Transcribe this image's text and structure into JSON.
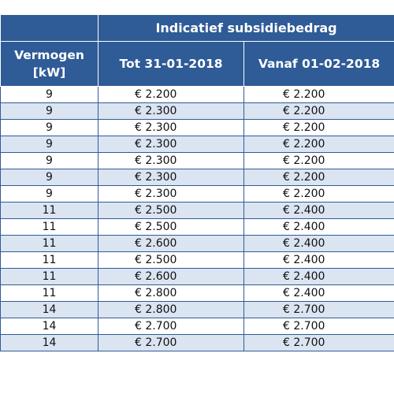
{
  "header": {
    "group_title": "Indicatief subsidiebedrag",
    "col_power_line1": "Vermogen",
    "col_power_line2": "[kW]",
    "col_until": "Tot 31-01-2018",
    "col_from": "Vanaf 01-02-2018"
  },
  "rows": [
    {
      "kw": "9",
      "until": "€ 2.200",
      "from": "€ 2.200"
    },
    {
      "kw": "9",
      "until": "€ 2.300",
      "from": "€ 2.200"
    },
    {
      "kw": "9",
      "until": "€ 2.300",
      "from": "€ 2.200"
    },
    {
      "kw": "9",
      "until": "€ 2.300",
      "from": "€ 2.200"
    },
    {
      "kw": "9",
      "until": "€ 2.300",
      "from": "€ 2.200"
    },
    {
      "kw": "9",
      "until": "€ 2.300",
      "from": "€ 2.200"
    },
    {
      "kw": "9",
      "until": "€ 2.300",
      "from": "€ 2.200"
    },
    {
      "kw": "11",
      "until": "€ 2.500",
      "from": "€ 2.400"
    },
    {
      "kw": "11",
      "until": "€ 2.500",
      "from": "€ 2.400"
    },
    {
      "kw": "11",
      "until": "€ 2.600",
      "from": "€ 2.400"
    },
    {
      "kw": "11",
      "until": "€ 2.500",
      "from": "€ 2.400"
    },
    {
      "kw": "11",
      "until": "€ 2.600",
      "from": "€ 2.400"
    },
    {
      "kw": "11",
      "until": "€ 2.800",
      "from": "€ 2.400"
    },
    {
      "kw": "14",
      "until": "€ 2.800",
      "from": "€ 2.700"
    },
    {
      "kw": "14",
      "until": "€ 2.700",
      "from": "€ 2.700"
    },
    {
      "kw": "14",
      "until": "€ 2.700",
      "from": "€ 2.700"
    }
  ],
  "colors": {
    "header_bg": "#2f5b97",
    "header_text": "#ffffff",
    "row_alt_bg": "#dbe4f1",
    "border": "#2f5b97"
  }
}
